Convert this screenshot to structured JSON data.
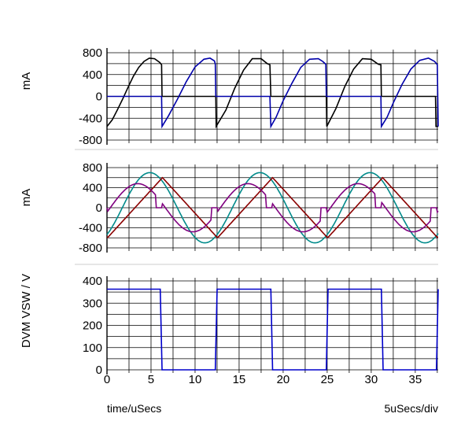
{
  "chart_data": [
    {
      "type": "line",
      "ylabel": "mA",
      "ylim": [
        -800,
        800
      ],
      "yticks": [
        -800,
        -400,
        0,
        400,
        800
      ],
      "grid": true,
      "series": [
        {
          "color": "#000000",
          "x": [
            0,
            0.6,
            1.2,
            1.8,
            2.4,
            3,
            3.6,
            4.2,
            4.8,
            5.4,
            6,
            6.2,
            6.25,
            7,
            8,
            9,
            10,
            11,
            12,
            12.35,
            12.4,
            13.5,
            14.5,
            15.5,
            16.5,
            17.5,
            18.2,
            18.5,
            18.6,
            19,
            20,
            21,
            22,
            23,
            24,
            24.9,
            24.95,
            26,
            27,
            28,
            29,
            30,
            30.8,
            31.1,
            31.15,
            32,
            33,
            34,
            35,
            36,
            37,
            37.3,
            37.35,
            37.6
          ],
          "y": [
            -550,
            -430,
            -240,
            -40,
            170,
            370,
            530,
            640,
            700,
            690,
            620,
            580,
            0,
            0,
            0,
            0,
            0,
            0,
            0,
            0,
            -550,
            -250,
            150,
            480,
            690,
            690,
            600,
            580,
            0,
            0,
            0,
            0,
            0,
            0,
            0,
            0,
            -550,
            -220,
            180,
            500,
            690,
            680,
            590,
            580,
            0,
            0,
            0,
            0,
            0,
            0,
            0,
            0,
            -550,
            -550
          ]
        },
        {
          "color": "#0000aa",
          "x": [
            0,
            5,
            6.2,
            6.25,
            7,
            8,
            9,
            10,
            11,
            11.7,
            12.2,
            12.3,
            12.35,
            13,
            18.5,
            18.6,
            19.2,
            20,
            21,
            22,
            23,
            24,
            24.5,
            24.85,
            24.9,
            25.2,
            31.1,
            31.15,
            31.8,
            32.5,
            33.5,
            34.5,
            35.5,
            36.5,
            37.2,
            37.5,
            37.6
          ],
          "y": [
            0,
            0,
            0,
            -550,
            -350,
            -50,
            270,
            540,
            680,
            700,
            650,
            590,
            0,
            0,
            0,
            -550,
            -380,
            -80,
            240,
            530,
            680,
            690,
            640,
            590,
            0,
            0,
            0,
            -550,
            -380,
            -120,
            220,
            500,
            660,
            700,
            640,
            580,
            -550
          ]
        }
      ]
    },
    {
      "type": "line",
      "ylabel": "mA",
      "ylim": [
        -800,
        800
      ],
      "yticks": [
        -800,
        -400,
        0,
        400,
        800
      ],
      "grid": true,
      "series": [
        {
          "color": "#008b8b",
          "period": 12.5,
          "amplitude": 700,
          "phase_deg": -50
        },
        {
          "color": "#8b0000",
          "shape": "triangle",
          "period": 12.5,
          "amplitude": 600,
          "peak_x": 6.3,
          "trough_x": 12.55
        },
        {
          "color": "#800080",
          "period": 12.5,
          "amplitude": 480,
          "peak_x": 3.5,
          "trough_x": 9.75,
          "flat_zero": [
            [
              5.5,
              6.2
            ],
            [
              11.8,
              12.5
            ]
          ]
        }
      ]
    },
    {
      "type": "line",
      "ylabel": "DVM VSW / V",
      "ylim": [
        0,
        400
      ],
      "yticks": [
        0,
        100,
        200,
        300,
        400
      ],
      "ytick_labels": [
        "0",
        "100",
        "200",
        "300",
        "400"
      ],
      "xlim": [
        0,
        37.6
      ],
      "xticks": [
        0,
        5,
        10,
        15,
        20,
        25,
        30,
        35
      ],
      "xlabel": "time/uSecs",
      "xscale_note": "5uSecs/div",
      "grid": true,
      "series": [
        {
          "color": "#0000cc",
          "x": [
            0,
            6.05,
            6.25,
            12.3,
            12.5,
            18.6,
            18.8,
            24.9,
            25.1,
            31.15,
            31.35,
            37.4,
            37.6
          ],
          "y": [
            363,
            363,
            0,
            0,
            363,
            363,
            0,
            0,
            363,
            363,
            0,
            0,
            363
          ]
        }
      ]
    }
  ],
  "labels": {
    "xlabel": "time/uSecs",
    "scale": "5uSecs/div",
    "top_ylabel": "mA",
    "mid_ylabel": "mA",
    "bot_ylabel": "DVM VSW / V"
  }
}
